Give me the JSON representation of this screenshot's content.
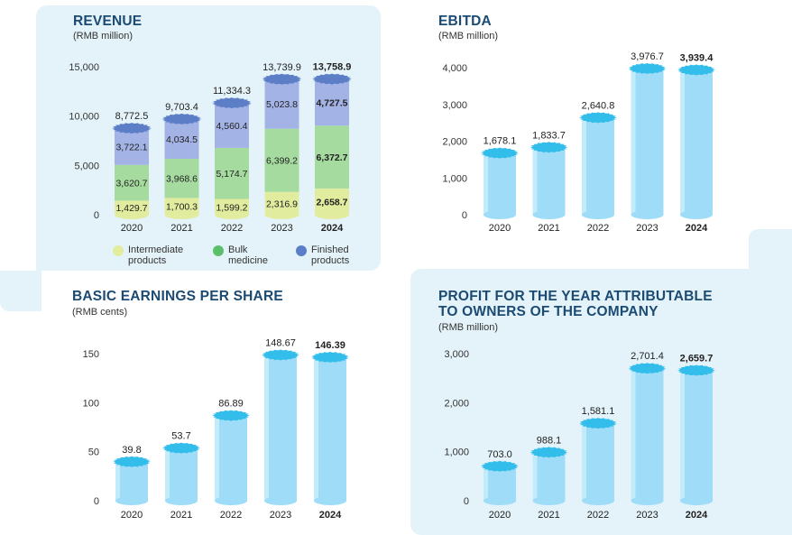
{
  "colors": {
    "panel_bg": "#e4f3f9",
    "title": "#1b4a73",
    "intermediate": "#e2ec9e",
    "bulk": "#a6dba0",
    "finished": "#a4b3e6",
    "cap_dark": "#5b7ec6",
    "bar": "#9fdcf7",
    "cap_light": "#33bdeb"
  },
  "panels": {
    "revenue": {
      "title": "REVENUE",
      "subtitle": "(RMB million)"
    },
    "ebitda": {
      "title": "EBITDA",
      "subtitle": "(RMB million)"
    },
    "eps": {
      "title": "BASIC EARNINGS PER SHARE",
      "subtitle": "(RMB cents)"
    },
    "profit": {
      "title_line1": "PROFIT FOR THE YEAR ATTRIBUTABLE",
      "title_line2": "TO OWNERS OF THE COMPANY",
      "subtitle": "(RMB million)"
    }
  },
  "legend": {
    "intermediate": "Intermediate\nproducts",
    "bulk": "Bulk\nmedicine",
    "finished": "Finished\nproducts"
  },
  "chart_data": [
    {
      "id": "revenue",
      "type": "bar",
      "stacked": true,
      "title": "REVENUE",
      "ylabel": "(RMB million)",
      "categories": [
        "2020",
        "2021",
        "2022",
        "2023",
        "2024"
      ],
      "series": [
        {
          "name": "Intermediate products",
          "values": [
            1429.7,
            1700.3,
            1599.2,
            2316.9,
            2658.7
          ],
          "labels": [
            "1,429.7",
            "1,700.3",
            "1,599.2",
            "2,316.9",
            "2,658.7"
          ]
        },
        {
          "name": "Bulk medicine",
          "values": [
            3620.7,
            3968.6,
            5174.7,
            6399.2,
            6372.7
          ],
          "labels": [
            "3,620.7",
            "3,968.6",
            "5,174.7",
            "6,399.2",
            "6,372.7"
          ]
        },
        {
          "name": "Finished products",
          "values": [
            3722.1,
            4034.5,
            4560.4,
            5023.8,
            4727.5
          ],
          "labels": [
            "3,722.1",
            "4,034.5",
            "4,560.4",
            "5,023.8",
            "4,727.5"
          ]
        }
      ],
      "totals": [
        8772.5,
        9703.4,
        11334.3,
        13739.9,
        13758.9
      ],
      "total_labels": [
        "8,772.5",
        "9,703.4",
        "11,334.3",
        "13,739.9",
        "13,758.9"
      ],
      "ylim": [
        0,
        15000
      ],
      "yticks": [
        0,
        5000,
        10000,
        15000
      ],
      "ytick_labels": [
        "0",
        "5,000",
        "10,000",
        "15,000"
      ],
      "highlight_category": "2024"
    },
    {
      "id": "ebitda",
      "type": "bar",
      "title": "EBITDA",
      "ylabel": "(RMB million)",
      "categories": [
        "2020",
        "2021",
        "2022",
        "2023",
        "2024"
      ],
      "values": [
        1678.1,
        1833.7,
        2640.8,
        3976.7,
        3939.4
      ],
      "value_labels": [
        "1,678.1",
        "1,833.7",
        "2,640.8",
        "3,976.7",
        "3,939.4"
      ],
      "ylim": [
        0,
        4000
      ],
      "yticks": [
        0,
        1000,
        2000,
        3000,
        4000
      ],
      "ytick_labels": [
        "0",
        "1,000",
        "2,000",
        "3,000",
        "4,000"
      ],
      "highlight_category": "2024"
    },
    {
      "id": "eps",
      "type": "bar",
      "title": "BASIC EARNINGS PER SHARE",
      "ylabel": "(RMB cents)",
      "categories": [
        "2020",
        "2021",
        "2022",
        "2023",
        "2024"
      ],
      "values": [
        39.8,
        53.7,
        86.89,
        148.67,
        146.39
      ],
      "value_labels": [
        "39.8",
        "53.7",
        "86.89",
        "148.67",
        "146.39"
      ],
      "ylim": [
        0,
        150
      ],
      "yticks": [
        0,
        50,
        100,
        150
      ],
      "ytick_labels": [
        "0",
        "50",
        "100",
        "150"
      ],
      "highlight_category": "2024"
    },
    {
      "id": "profit",
      "type": "bar",
      "title": "PROFIT FOR THE YEAR ATTRIBUTABLE TO OWNERS OF THE COMPANY",
      "ylabel": "(RMB million)",
      "categories": [
        "2020",
        "2021",
        "2022",
        "2023",
        "2024"
      ],
      "values": [
        703.0,
        988.1,
        1581.1,
        2701.4,
        2659.7
      ],
      "value_labels": [
        "703.0",
        "988.1",
        "1,581.1",
        "2,701.4",
        "2,659.7"
      ],
      "ylim": [
        0,
        3000
      ],
      "yticks": [
        0,
        1000,
        2000,
        3000
      ],
      "ytick_labels": [
        "0",
        "1,000",
        "2,000",
        "3,000"
      ],
      "highlight_category": "2024"
    }
  ]
}
